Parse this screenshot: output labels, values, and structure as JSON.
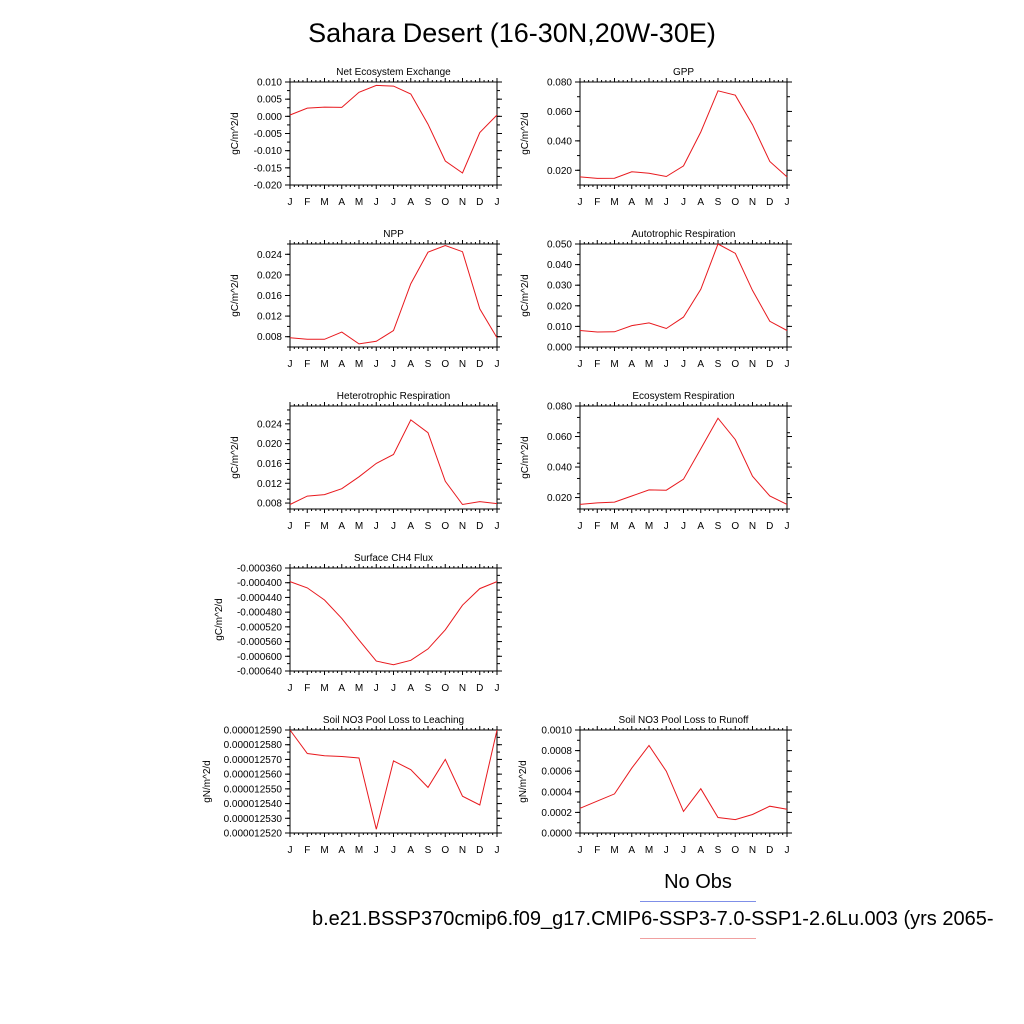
{
  "title": "Sahara Desert (16-30N,20W-30E)",
  "months": [
    "J",
    "F",
    "M",
    "A",
    "M",
    "J",
    "J",
    "A",
    "S",
    "O",
    "N",
    "D",
    "J"
  ],
  "colors": {
    "series": "#e8191e",
    "obs_line": "#7f8fe8",
    "case_line": "#f0a0a0"
  },
  "legend": {
    "obs": "No Obs",
    "case": "b.e21.BSSP370cmip6.f09_g17.CMIP6-SSP3-7.0-SSP1-2.6Lu.003 (yrs 2065-"
  },
  "chart_data": [
    {
      "type": "line",
      "title": "Net Ecosystem Exchange",
      "ylabel": "gC/m^2/d",
      "ylim": [
        -0.02,
        0.01
      ],
      "yticks": [
        0.01,
        0.005,
        0.0,
        -0.005,
        -0.01,
        -0.015,
        -0.02
      ],
      "yticklabels": [
        "0.010",
        "0.005",
        "0.000",
        "-0.005",
        "-0.010",
        "-0.015",
        "-0.020"
      ],
      "values": [
        0.0004,
        0.0024,
        0.0027,
        0.0026,
        0.007,
        0.009,
        0.0088,
        0.0065,
        -0.0023,
        -0.013,
        -0.0165,
        -0.0047,
        0.0004
      ]
    },
    {
      "type": "line",
      "title": "GPP",
      "ylabel": "gC/m^2/d",
      "ylim": [
        0.01,
        0.08
      ],
      "yticks": [
        0.08,
        0.06,
        0.04,
        0.02
      ],
      "yticklabels": [
        "0.080",
        "0.060",
        "0.040",
        "0.020"
      ],
      "values": [
        0.0155,
        0.0145,
        0.0146,
        0.019,
        0.018,
        0.0158,
        0.023,
        0.046,
        0.074,
        0.071,
        0.051,
        0.026,
        0.0155
      ]
    },
    {
      "type": "line",
      "title": "NPP",
      "ylabel": "gC/m^2/d",
      "ylim": [
        0.006,
        0.026
      ],
      "yticks": [
        0.024,
        0.02,
        0.016,
        0.012,
        0.008
      ],
      "yticklabels": [
        "0.024",
        "0.020",
        "0.016",
        "0.012",
        "0.008"
      ],
      "values": [
        0.0078,
        0.0075,
        0.0075,
        0.0089,
        0.0066,
        0.0071,
        0.0092,
        0.0183,
        0.0244,
        0.0257,
        0.0245,
        0.0134,
        0.0078
      ]
    },
    {
      "type": "line",
      "title": "Autotrophic Respiration",
      "ylabel": "gC/m^2/d",
      "ylim": [
        0.0,
        0.05
      ],
      "yticks": [
        0.05,
        0.04,
        0.03,
        0.02,
        0.01,
        0.0
      ],
      "yticklabels": [
        "0.050",
        "0.040",
        "0.030",
        "0.020",
        "0.010",
        "0.000"
      ],
      "values": [
        0.008,
        0.0073,
        0.0074,
        0.0104,
        0.0117,
        0.009,
        0.0145,
        0.028,
        0.05,
        0.0455,
        0.0275,
        0.0125,
        0.008
      ]
    },
    {
      "type": "line",
      "title": "Heterotrophic Respiration",
      "ylabel": "gC/m^2/d",
      "ylim": [
        0.0068,
        0.0276
      ],
      "yticks": [
        0.024,
        0.02,
        0.016,
        0.012,
        0.008
      ],
      "yticklabels": [
        "0.024",
        "0.020",
        "0.016",
        "0.012",
        "0.008"
      ],
      "values": [
        0.0077,
        0.0094,
        0.0097,
        0.0109,
        0.0133,
        0.016,
        0.0178,
        0.0248,
        0.0222,
        0.0124,
        0.0077,
        0.0083,
        0.0079
      ]
    },
    {
      "type": "line",
      "title": "Ecosystem Respiration",
      "ylabel": "gC/m^2/d",
      "ylim": [
        0.0125,
        0.08
      ],
      "yticks": [
        0.08,
        0.06,
        0.04,
        0.02
      ],
      "yticklabels": [
        "0.080",
        "0.060",
        "0.040",
        "0.020"
      ],
      "values": [
        0.0155,
        0.0165,
        0.017,
        0.021,
        0.025,
        0.0248,
        0.032,
        0.052,
        0.072,
        0.058,
        0.034,
        0.021,
        0.0155
      ]
    },
    {
      "type": "line",
      "title": "Surface CH4 Flux",
      "ylabel": "gC/m^2/d",
      "ylim": [
        -0.00064,
        -0.00036
      ],
      "yticks": [
        -0.00036,
        -0.0004,
        -0.00044,
        -0.00048,
        -0.00052,
        -0.00056,
        -0.0006,
        -0.00064
      ],
      "yticklabels": [
        "-0.000360",
        "-0.000400",
        "-0.000440",
        "-0.000480",
        "-0.000520",
        "-0.000560",
        "-0.000600",
        "-0.000640"
      ],
      "values": [
        -0.000397,
        -0.000414,
        -0.000447,
        -0.000497,
        -0.000556,
        -0.000613,
        -0.000623,
        -0.000611,
        -0.00058,
        -0.000528,
        -0.000461,
        -0.000416,
        -0.000397
      ]
    },
    {
      "type": "line",
      "title": "Soil NO3 Pool Loss to Leaching",
      "ylabel": "gN/m^2/d",
      "ylim": [
        1.252e-05,
        1.259e-05
      ],
      "yticks": [
        1.259e-05,
        1.258e-05,
        1.257e-05,
        1.256e-05,
        1.255e-05,
        1.254e-05,
        1.253e-05,
        1.252e-05
      ],
      "yticklabels": [
        "0.000012590",
        "0.000012580",
        "0.000012570",
        "0.000012560",
        "0.000012550",
        "0.000012540",
        "0.000012530",
        "0.000012520"
      ],
      "values": [
        1.259e-05,
        1.2574e-05,
        1.25725e-05,
        1.2572e-05,
        1.2571e-05,
        1.25225e-05,
        1.2569e-05,
        1.2563e-05,
        1.2551e-05,
        1.257e-05,
        1.2545e-05,
        1.2539e-05,
        1.259e-05
      ]
    },
    {
      "type": "line",
      "title": "Soil NO3 Pool Loss to Runoff",
      "ylabel": "gN/m^2/d",
      "ylim": [
        0.0,
        0.001
      ],
      "yticks": [
        0.001,
        0.0008,
        0.0006,
        0.0004,
        0.0002,
        0.0
      ],
      "yticklabels": [
        "0.0010",
        "0.0008",
        "0.0006",
        "0.0004",
        "0.0002",
        "0.0000"
      ],
      "values": [
        0.00024,
        0.00031,
        0.00038,
        0.00063,
        0.00085,
        0.0006,
        0.00021,
        0.00043,
        0.00015,
        0.00013,
        0.00018,
        0.00026,
        0.00023
      ]
    }
  ]
}
